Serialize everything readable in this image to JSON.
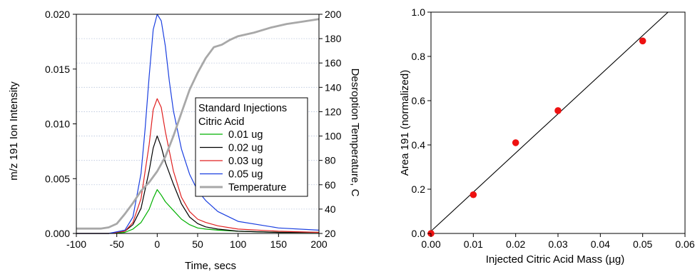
{
  "chart_data": [
    {
      "type": "line",
      "xlabel": "Time, secs",
      "ylabel": "m/z 191 Ion Intensity",
      "y2label": "Desroption Temperature, C",
      "xlim": [
        -100,
        200
      ],
      "ylim": [
        0,
        0.02
      ],
      "y2lim": [
        20,
        200
      ],
      "xticks": [
        "-100",
        "-50",
        "0",
        "50",
        "100",
        "150",
        "200"
      ],
      "yticks": [
        "0.000",
        "0.005",
        "0.010",
        "0.015",
        "0.020"
      ],
      "y2ticks": [
        "20",
        "40",
        "60",
        "80",
        "100",
        "120",
        "140",
        "160",
        "180",
        "200"
      ],
      "grid": "horizontal dotted",
      "legend": {
        "placement": "center-right",
        "title_lines": [
          "Standard Injections",
          "Citric Acid"
        ]
      },
      "series": [
        {
          "name": "0.01 ug",
          "color": "#00b000",
          "axis": "left",
          "x": [
            -100,
            -60,
            -40,
            -30,
            -20,
            -10,
            -5,
            0,
            5,
            10,
            20,
            30,
            40,
            50,
            60,
            75,
            100,
            150,
            200
          ],
          "y": [
            0,
            0,
            0.0001,
            0.0004,
            0.001,
            0.0022,
            0.0032,
            0.004,
            0.0035,
            0.0029,
            0.0021,
            0.0013,
            0.0008,
            0.0005,
            0.0004,
            0.0003,
            0.0002,
            0.0001,
            0.0001
          ]
        },
        {
          "name": "0.02 ug",
          "color": "#000000",
          "axis": "left",
          "x": [
            -100,
            -60,
            -40,
            -30,
            -20,
            -10,
            -5,
            0,
            5,
            10,
            20,
            30,
            40,
            50,
            60,
            75,
            100,
            150,
            200
          ],
          "y": [
            0,
            0,
            0.0002,
            0.0008,
            0.0023,
            0.0057,
            0.0078,
            0.0089,
            0.0079,
            0.0065,
            0.0045,
            0.0027,
            0.0015,
            0.0009,
            0.0006,
            0.0004,
            0.0002,
            0.0001,
            0.0001
          ]
        },
        {
          "name": "0.03 ug",
          "color": "#e02020",
          "axis": "left",
          "x": [
            -100,
            -60,
            -40,
            -30,
            -20,
            -10,
            -5,
            0,
            5,
            10,
            20,
            30,
            40,
            50,
            60,
            75,
            100,
            150,
            200
          ],
          "y": [
            0,
            0,
            0.0002,
            0.001,
            0.0032,
            0.0081,
            0.0113,
            0.0123,
            0.0115,
            0.0093,
            0.0057,
            0.0033,
            0.002,
            0.0013,
            0.001,
            0.0007,
            0.0004,
            0.0002,
            0.0001
          ]
        },
        {
          "name": "0.05 ug",
          "color": "#1a3fe0",
          "axis": "left",
          "x": [
            -100,
            -60,
            -40,
            -30,
            -20,
            -15,
            -10,
            -5,
            0,
            5,
            10,
            15,
            20,
            30,
            40,
            50,
            60,
            75,
            100,
            150,
            200
          ],
          "y": [
            0,
            0,
            0.0003,
            0.0015,
            0.0055,
            0.0095,
            0.0143,
            0.0186,
            0.02,
            0.0194,
            0.0171,
            0.0139,
            0.0112,
            0.0077,
            0.0054,
            0.0039,
            0.003,
            0.002,
            0.0011,
            0.0005,
            0.0003
          ]
        },
        {
          "name": "Temperature",
          "color": "#a8a8a8",
          "axis": "right",
          "x": [
            -100,
            -70,
            -60,
            -50,
            -40,
            -30,
            -20,
            -10,
            0,
            10,
            20,
            30,
            40,
            50,
            60,
            70,
            80,
            90,
            100,
            120,
            140,
            160,
            180,
            200
          ],
          "y": [
            24,
            24,
            25,
            28,
            36,
            45,
            55,
            62,
            71,
            83,
            100,
            119,
            138,
            152,
            164,
            173,
            175,
            179,
            182,
            185,
            189,
            192,
            194,
            196
          ]
        }
      ]
    },
    {
      "type": "scatter",
      "xlabel": "Injected Citric Acid Mass (µg)",
      "ylabel": "Area 191 (normalized)",
      "xlim": [
        0,
        0.06
      ],
      "ylim": [
        0,
        1.0
      ],
      "xticks": [
        "0.00",
        "0.01",
        "0.02",
        "0.03",
        "0.04",
        "0.05",
        "0.06"
      ],
      "yticks": [
        "0.0",
        "0.2",
        "0.4",
        "0.6",
        "0.8",
        "1.0"
      ],
      "grid": "off",
      "points": {
        "color": "#ee1111",
        "x": [
          0.0,
          0.01,
          0.02,
          0.03,
          0.05
        ],
        "y": [
          0.0,
          0.175,
          0.41,
          0.555,
          0.87
        ]
      },
      "fit_line": {
        "color": "#000000",
        "x": [
          0.0,
          0.056
        ],
        "y": [
          0.01,
          1.0
        ]
      }
    }
  ]
}
